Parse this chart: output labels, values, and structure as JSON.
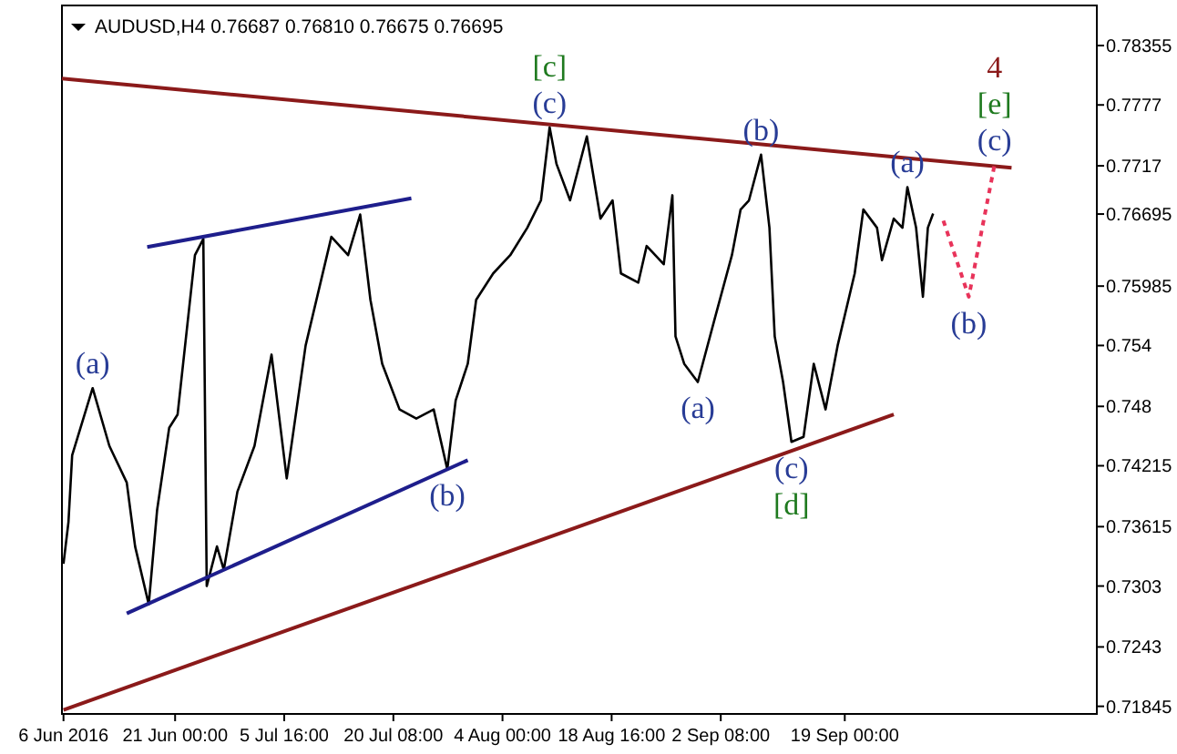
{
  "chart_data": {
    "type": "line",
    "title": "AUDUSD,H4  0.76687 0.76810 0.76675 0.76695",
    "xlim": [
      "2016-06-05T19:00",
      "2016-10-22T21:00"
    ],
    "xticks": [
      {
        "value": "2016-06-06",
        "label": "6 Jun 2016"
      },
      {
        "value": "2016-06-21T00:00",
        "label": "21 Jun 00:00"
      },
      {
        "value": "2016-07-05T16:00",
        "label": "5 Jul 16:00"
      },
      {
        "value": "2016-07-20T08:00",
        "label": "20 Jul 08:00"
      },
      {
        "value": "2016-08-04T00:00",
        "label": "4 Aug 00:00"
      },
      {
        "value": "2016-08-18T16:00",
        "label": "18 Aug 16:00"
      },
      {
        "value": "2016-09-02T08:00",
        "label": "2 Sep 08:00"
      },
      {
        "value": "2016-09-19T00:00",
        "label": "19 Sep 00:00"
      }
    ],
    "ylim": [
      0.7177,
      0.7875
    ],
    "yticks": [
      0.78355,
      0.7777,
      0.7717,
      {
        "value": 0.76695,
        "label": "0.76695"
      },
      0.75985,
      0.754,
      0.748,
      0.74215,
      0.73615,
      0.7303,
      0.7243,
      0.71845
    ],
    "grid": false,
    "series": [
      {
        "color": "#000000",
        "x": [
          "2016-06-06T00:00",
          "2016-06-06T16:00",
          "2016-06-07T04:00",
          "2016-06-09T22:00",
          "2016-06-12T04:00",
          "2016-06-14T12:00",
          "2016-06-15T15:00",
          "2016-06-17T11:00",
          "2016-06-18T14:00",
          "2016-06-20T05:00",
          "2016-06-21T08:00",
          "2016-06-23T16:00",
          "2016-06-24T19:00",
          "2016-06-25T06:00",
          "2016-06-26T15:00",
          "2016-06-27T13:00",
          "2016-06-29T09:00",
          "2016-07-01T16:00",
          "2016-07-03T23:00",
          "2016-07-06T00:00",
          "2016-07-08T13:00",
          "2016-07-12T00:00",
          "2016-07-14T06:00",
          "2016-07-15T21:00",
          "2016-07-17T06:00",
          "2016-07-18T20:00",
          "2016-07-21T04:00",
          "2016-07-23T10:00",
          "2016-07-25T18:00",
          "2016-07-27T14:00",
          "2016-07-28T17:00",
          "2016-07-30T08:00",
          "2016-07-31T11:00",
          "2016-08-02T18:00",
          "2016-08-05T01:00",
          "2016-08-07T08:00",
          "2016-08-09T04:00",
          "2016-08-10T08:00",
          "2016-08-11T06:00",
          "2016-08-13T02:00",
          "2016-08-15T08:00",
          "2016-08-17T04:00",
          "2016-08-18T19:00",
          "2016-08-19T22:00",
          "2016-08-22T06:00",
          "2016-08-23T09:00",
          "2016-08-25T16:00",
          "2016-08-26T20:00",
          "2016-08-27T06:00",
          "2016-08-28T10:00",
          "2016-08-30T06:00",
          "2016-09-01T13:00",
          "2016-09-03T20:00",
          "2016-09-05T00:00",
          "2016-09-06T03:00",
          "2016-09-07T18:00",
          "2016-09-08T21:00",
          "2016-09-09T14:00",
          "2016-09-10T17:00",
          "2016-09-11T20:00",
          "2016-09-13T11:00",
          "2016-09-14T20:00",
          "2016-09-16T10:00",
          "2016-09-18T01:00",
          "2016-09-20T08:00",
          "2016-09-21T12:00",
          "2016-09-23T08:00",
          "2016-09-24T00:00",
          "2016-09-25T14:00",
          "2016-09-26T18:00",
          "2016-09-27T10:00",
          "2016-09-28T14:00",
          "2016-09-29T12:00",
          "2016-09-30T04:00",
          "2016-09-30T21:00"
        ],
        "values": [
          0.7325,
          0.7366,
          0.7432,
          0.7498,
          0.7441,
          0.7405,
          0.7342,
          0.7285,
          0.7378,
          0.7459,
          0.7472,
          0.7629,
          0.7645,
          0.7303,
          0.7342,
          0.7319,
          0.7396,
          0.7441,
          0.7531,
          0.7409,
          0.754,
          0.7647,
          0.7629,
          0.7669,
          0.7585,
          0.7522,
          0.7477,
          0.7468,
          0.7477,
          0.7418,
          0.7486,
          0.7522,
          0.7585,
          0.7611,
          0.7629,
          0.7656,
          0.7683,
          0.7755,
          0.7719,
          0.7683,
          0.7746,
          0.7665,
          0.7683,
          0.7611,
          0.7602,
          0.7638,
          0.762,
          0.7688,
          0.7549,
          0.7522,
          0.7504,
          0.7567,
          0.7629,
          0.7674,
          0.7683,
          0.7728,
          0.7656,
          0.7549,
          0.7504,
          0.7445,
          0.745,
          0.7522,
          0.7477,
          0.754,
          0.7611,
          0.7674,
          0.7656,
          0.7624,
          0.7665,
          0.7656,
          0.7696,
          0.7656,
          0.7588,
          0.7656,
          0.767
        ]
      },
      {
        "color": "#8b1a1a",
        "x": [
          "2016-06-05T19:00",
          "2016-10-11T10:00"
        ],
        "values": [
          0.7803,
          0.7715
        ]
      },
      {
        "color": "#8b1a1a",
        "x": [
          "2016-06-06T00:00",
          "2016-09-25T14:00"
        ],
        "values": [
          0.7181,
          0.7472
        ]
      },
      {
        "color": "#1e1e8c",
        "x": [
          "2016-06-17T06:00",
          "2016-07-22T18:00"
        ],
        "values": [
          0.7637,
          0.7685
        ]
      },
      {
        "color": "#1e1e8c",
        "x": [
          "2016-06-14T12:00",
          "2016-07-30T08:00"
        ],
        "values": [
          0.7276,
          0.7427
        ]
      },
      {
        "color": "#e8335a",
        "line_style": "dashed",
        "x": [
          "2016-10-02T06:00",
          "2016-10-05T16:00",
          "2016-10-09T03:00"
        ],
        "values": [
          0.7663,
          0.7588,
          0.7718
        ]
      }
    ],
    "annotations": [
      {
        "text": "(a)",
        "x": "2016-06-09T22:00",
        "y": 0.7498
      },
      {
        "text": "(c)",
        "x": "2016-08-10T08:00",
        "y": 0.7755
      },
      {
        "text": "[c]",
        "x": "2016-08-10T08:00",
        "y": 0.7755
      },
      {
        "text": "(b)",
        "x": "2016-07-27T14:00",
        "y": 0.7418
      },
      {
        "text": "(a)",
        "x": "2016-08-30T06:00",
        "y": 0.7504
      },
      {
        "text": "(b)",
        "x": "2016-09-07T18:00",
        "y": 0.7728
      },
      {
        "text": "(c)",
        "x": "2016-09-11T20:00",
        "y": 0.7445
      },
      {
        "text": "[d]",
        "x": "2016-09-11T20:00",
        "y": 0.7445
      },
      {
        "text": "(a)",
        "x": "2016-09-27T10:00",
        "y": 0.7696
      },
      {
        "text": "(b)",
        "x": "2016-10-05T16:00",
        "y": 0.7588
      },
      {
        "text": "(c)",
        "x": "2016-10-09T03:00",
        "y": 0.7718
      },
      {
        "text": "[e]",
        "x": "2016-10-09T03:00",
        "y": 0.7718
      },
      {
        "text": "4",
        "x": "2016-10-09T03:00",
        "y": 0.7718
      }
    ]
  }
}
